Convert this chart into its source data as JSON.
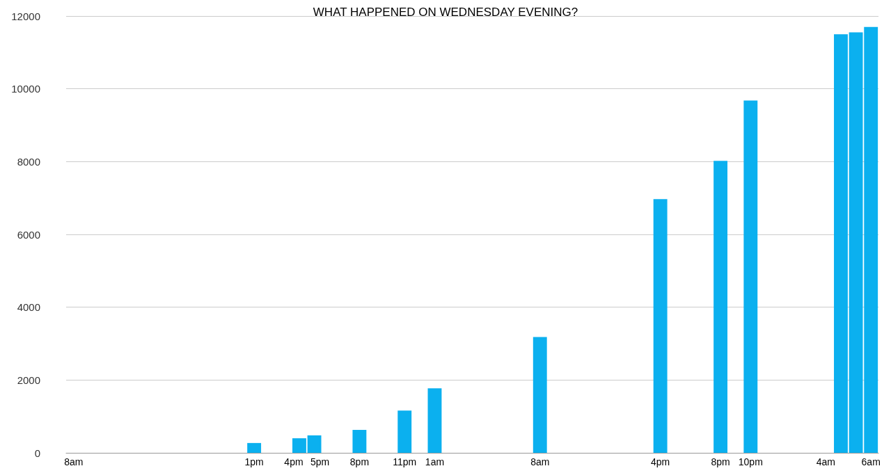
{
  "chart_data": {
    "type": "bar",
    "title": "WHAT HAPPENED ON WEDNESDAY EVENING?",
    "categories": [
      "8am",
      null,
      null,
      null,
      null,
      null,
      null,
      null,
      null,
      null,
      null,
      null,
      "1pm",
      null,
      null,
      "4pm",
      "5pm",
      null,
      null,
      "8pm",
      null,
      null,
      "11pm",
      null,
      "1am",
      null,
      null,
      null,
      null,
      null,
      null,
      "8am",
      null,
      null,
      null,
      null,
      null,
      null,
      null,
      "4pm",
      null,
      null,
      null,
      "8pm",
      null,
      "10pm",
      null,
      null,
      null,
      null,
      "4am",
      null,
      null,
      "6am"
    ],
    "values": [
      0,
      0,
      0,
      0,
      0,
      0,
      0,
      0,
      0,
      0,
      0,
      0,
      270,
      0,
      0,
      400,
      480,
      0,
      0,
      630,
      0,
      0,
      1160,
      0,
      1770,
      0,
      0,
      0,
      0,
      0,
      0,
      3180,
      0,
      0,
      0,
      0,
      0,
      0,
      0,
      6970,
      0,
      0,
      0,
      8020,
      0,
      9680,
      0,
      0,
      0,
      0,
      0,
      11500,
      11550,
      11700
    ],
    "color": "#0bb0ef",
    "ylim": [
      0,
      12000
    ],
    "yticks": [
      0,
      2000,
      4000,
      6000,
      8000,
      10000,
      12000
    ],
    "grid": "y"
  }
}
